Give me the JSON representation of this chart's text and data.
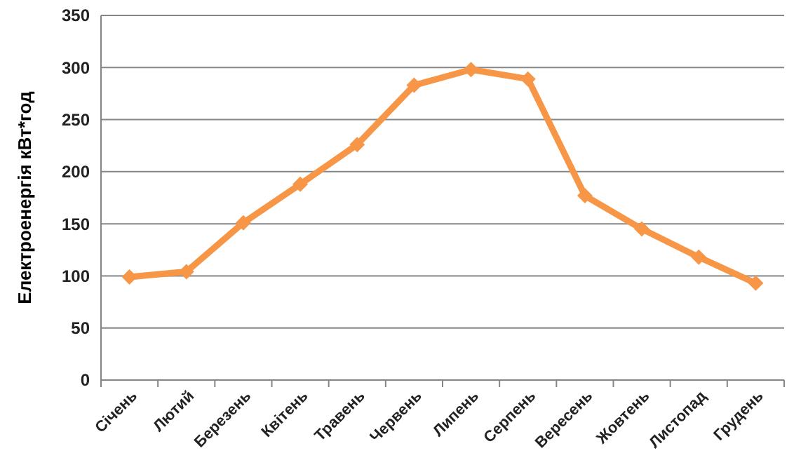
{
  "chart_data": {
    "type": "line",
    "ylabel": "Електроенергія кВт*год",
    "categories": [
      "Січень",
      "Лютий",
      "Березень",
      "Квітень",
      "Травень",
      "Червень",
      "Липень",
      "Серпень",
      "Вересень",
      "Жовтень",
      "Листопад",
      "Грудень"
    ],
    "series": [
      {
        "color": "#f79646",
        "values": [
          99,
          104,
          151,
          188,
          226,
          283,
          298,
          289,
          177,
          145,
          118,
          93
        ]
      }
    ],
    "ylim": [
      0,
      350
    ],
    "yticks": [
      0,
      50,
      100,
      150,
      200,
      250,
      300,
      350
    ],
    "grid": "y",
    "marker": "diamond",
    "line_style": "solid"
  }
}
